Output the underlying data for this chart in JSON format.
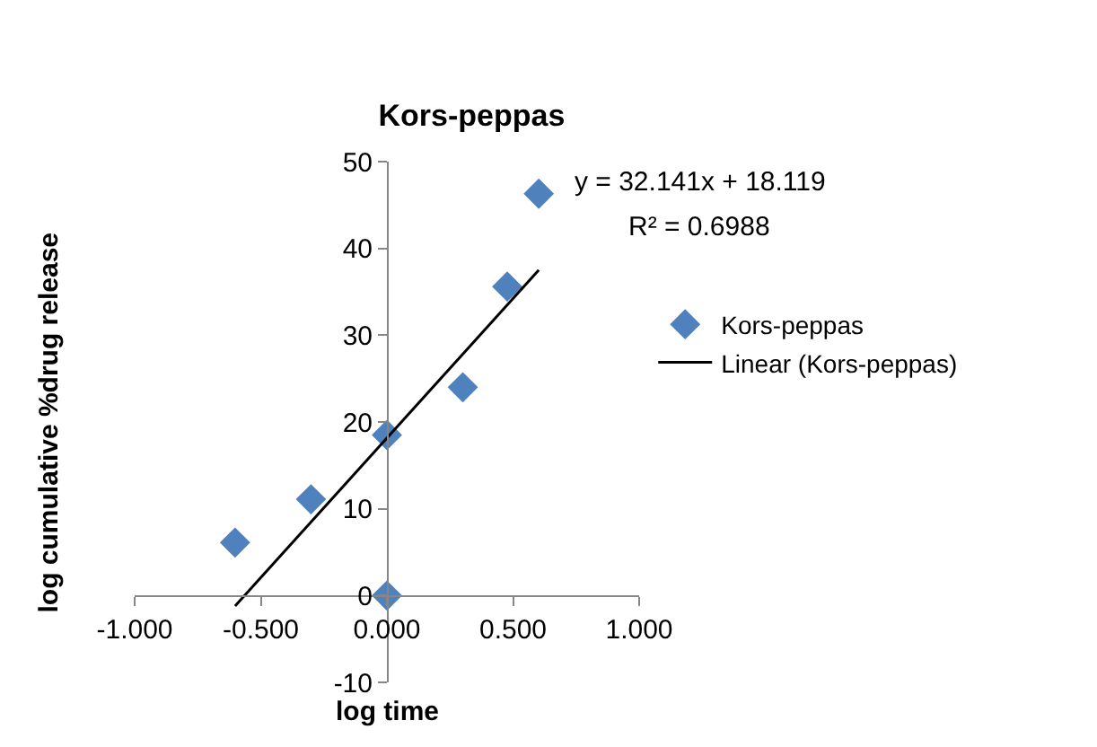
{
  "chart_data": {
    "type": "scatter",
    "title": "Kors-peppas",
    "xlabel": "log time",
    "ylabel": "log cumulative %drug release",
    "series": [
      {
        "name": "Kors-peppas",
        "color": "#4f81bd",
        "x": [
          -0.602,
          -0.301,
          0,
          0,
          0.301,
          0.477,
          0.602
        ],
        "values": [
          6.1,
          11.1,
          18.5,
          0,
          24,
          35.6,
          46.3
        ],
        "marker": "diamond"
      },
      {
        "name": "Linear (Kors-peppas)",
        "type": "line",
        "color": "#000000",
        "x": [
          -0.602,
          0.602
        ],
        "values": [
          -1.2,
          37.5
        ],
        "marker": "none",
        "line_style": "solid"
      }
    ],
    "annotations": [
      "y = 32.141x + 18.119",
      "R² = 0.6988"
    ],
    "xlim": [
      -1,
      1
    ],
    "xticks": [
      {
        "value": -1,
        "label": "-1.000"
      },
      {
        "value": -0.5,
        "label": "-0.500"
      },
      {
        "value": 0,
        "label": "0.000"
      },
      {
        "value": 0.5,
        "label": "0.500"
      },
      {
        "value": 1,
        "label": "1.000"
      }
    ],
    "ylim": [
      -10,
      50
    ],
    "yticks": [
      -10,
      0,
      10,
      20,
      30,
      40,
      50
    ],
    "grid": false,
    "legend": "right"
  }
}
